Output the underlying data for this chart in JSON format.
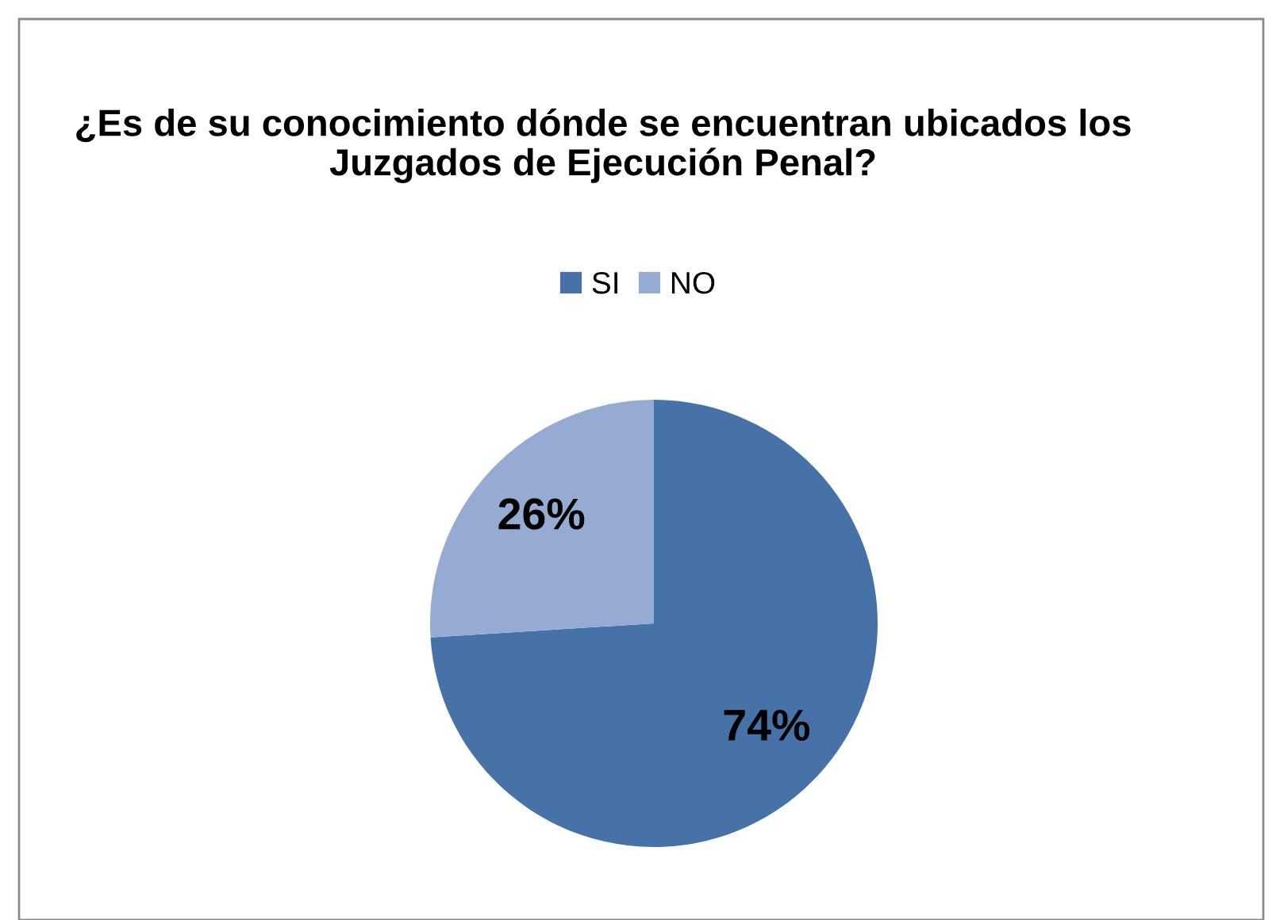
{
  "chart_data": {
    "type": "pie",
    "title": "¿Es de su conocimiento dónde se encuentran ubicados los Juzgados de Ejecución Penal?",
    "categories": [
      "SI",
      "NO"
    ],
    "values": [
      74,
      26
    ],
    "colors": [
      "#4672a8",
      "#95abd3"
    ],
    "value_labels": [
      "74%",
      "26%"
    ],
    "legend": "top"
  }
}
